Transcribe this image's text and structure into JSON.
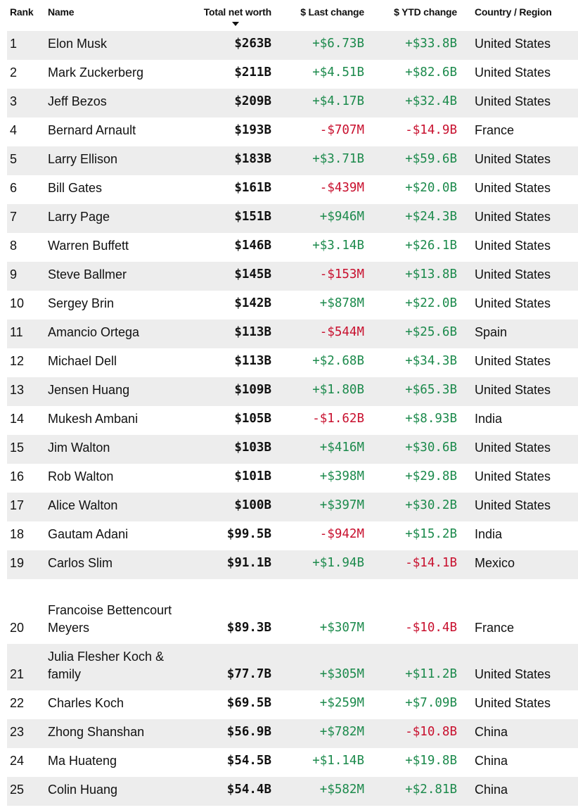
{
  "header": {
    "rank": "Rank",
    "name": "Name",
    "worth": "Total net worth",
    "last": "$ Last change",
    "ytd": "$ YTD change",
    "country": "Country / Region",
    "sort_icon": "sort-descending-icon"
  },
  "colors": {
    "positive": "#1c8a4c",
    "negative": "#c8102e",
    "stripe": "#ededed"
  },
  "rows": [
    {
      "rank": "1",
      "name": "Elon Musk",
      "worth": "$263B",
      "last": "+$6.73B",
      "ytd": "+$33.8B",
      "country": "United States"
    },
    {
      "rank": "2",
      "name": "Mark Zuckerberg",
      "worth": "$211B",
      "last": "+$4.51B",
      "ytd": "+$82.6B",
      "country": "United States"
    },
    {
      "rank": "3",
      "name": "Jeff Bezos",
      "worth": "$209B",
      "last": "+$4.17B",
      "ytd": "+$32.4B",
      "country": "United States"
    },
    {
      "rank": "4",
      "name": "Bernard Arnault",
      "worth": "$193B",
      "last": "-$707M",
      "ytd": "-$14.9B",
      "country": "France"
    },
    {
      "rank": "5",
      "name": "Larry Ellison",
      "worth": "$183B",
      "last": "+$3.71B",
      "ytd": "+$59.6B",
      "country": "United States"
    },
    {
      "rank": "6",
      "name": "Bill Gates",
      "worth": "$161B",
      "last": "-$439M",
      "ytd": "+$20.0B",
      "country": "United States"
    },
    {
      "rank": "7",
      "name": "Larry Page",
      "worth": "$151B",
      "last": "+$946M",
      "ytd": "+$24.3B",
      "country": "United States"
    },
    {
      "rank": "8",
      "name": "Warren Buffett",
      "worth": "$146B",
      "last": "+$3.14B",
      "ytd": "+$26.1B",
      "country": "United States"
    },
    {
      "rank": "9",
      "name": "Steve Ballmer",
      "worth": "$145B",
      "last": "-$153M",
      "ytd": "+$13.8B",
      "country": "United States"
    },
    {
      "rank": "10",
      "name": "Sergey Brin",
      "worth": "$142B",
      "last": "+$878M",
      "ytd": "+$22.0B",
      "country": "United States"
    },
    {
      "rank": "11",
      "name": "Amancio Ortega",
      "worth": "$113B",
      "last": "-$544M",
      "ytd": "+$25.6B",
      "country": "Spain"
    },
    {
      "rank": "12",
      "name": "Michael Dell",
      "worth": "$113B",
      "last": "+$2.68B",
      "ytd": "+$34.3B",
      "country": "United States"
    },
    {
      "rank": "13",
      "name": "Jensen Huang",
      "worth": "$109B",
      "last": "+$1.80B",
      "ytd": "+$65.3B",
      "country": "United States"
    },
    {
      "rank": "14",
      "name": "Mukesh Ambani",
      "worth": "$105B",
      "last": "-$1.62B",
      "ytd": "+$8.93B",
      "country": "India"
    },
    {
      "rank": "15",
      "name": "Jim Walton",
      "worth": "$103B",
      "last": "+$416M",
      "ytd": "+$30.6B",
      "country": "United States"
    },
    {
      "rank": "16",
      "name": "Rob Walton",
      "worth": "$101B",
      "last": "+$398M",
      "ytd": "+$29.8B",
      "country": "United States"
    },
    {
      "rank": "17",
      "name": "Alice Walton",
      "worth": "$100B",
      "last": "+$397M",
      "ytd": "+$30.2B",
      "country": "United States"
    },
    {
      "rank": "18",
      "name": "Gautam Adani",
      "worth": "$99.5B",
      "last": "-$942M",
      "ytd": "+$15.2B",
      "country": "India"
    },
    {
      "rank": "19",
      "name": "Carlos Slim",
      "worth": "$91.1B",
      "last": "+$1.94B",
      "ytd": "-$14.1B",
      "country": "Mexico"
    },
    {
      "rank": "20",
      "name": "Francoise Bettencourt Meyers",
      "worth": "$89.3B",
      "last": "+$307M",
      "ytd": "-$10.4B",
      "country": "France"
    },
    {
      "rank": "21",
      "name": "Julia Flesher Koch & family",
      "worth": "$77.7B",
      "last": "+$305M",
      "ytd": "+$11.2B",
      "country": "United States"
    },
    {
      "rank": "22",
      "name": "Charles Koch",
      "worth": "$69.5B",
      "last": "+$259M",
      "ytd": "+$7.09B",
      "country": "United States"
    },
    {
      "rank": "23",
      "name": "Zhong Shanshan",
      "worth": "$56.9B",
      "last": "+$782M",
      "ytd": "-$10.8B",
      "country": "China"
    },
    {
      "rank": "24",
      "name": "Ma Huateng",
      "worth": "$54.5B",
      "last": "+$1.14B",
      "ytd": "+$19.8B",
      "country": "China"
    },
    {
      "rank": "25",
      "name": "Colin Huang",
      "worth": "$54.4B",
      "last": "+$582M",
      "ytd": "+$2.81B",
      "country": "China"
    }
  ]
}
